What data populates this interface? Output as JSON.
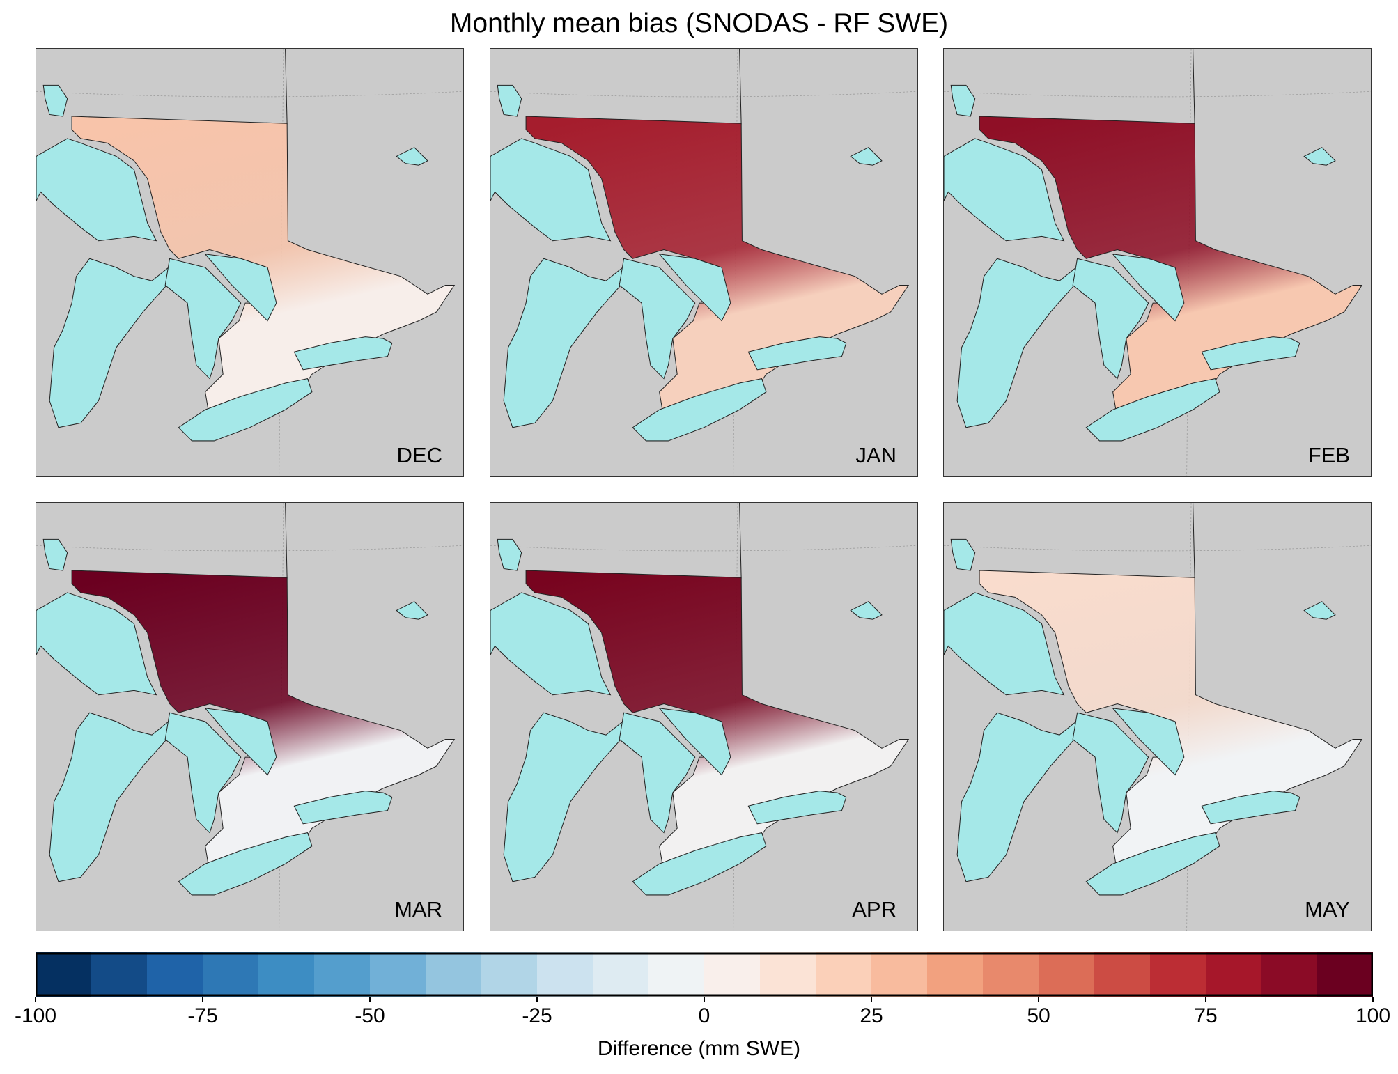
{
  "chart_data": {
    "type": "heatmap",
    "title": "Monthly mean bias (SNODAS - RF SWE)",
    "description_units": "mm SWE",
    "panels": [
      {
        "label": "DEC",
        "north_bias": 25,
        "south_bias": 3,
        "color_north": "#f8c4aa",
        "color_south": "#f7eeea"
      },
      {
        "label": "JAN",
        "north_bias": 80,
        "south_bias": 15,
        "color_north": "#a51d2d",
        "color_south": "#f6d0bd"
      },
      {
        "label": "FEB",
        "north_bias": 85,
        "south_bias": 20,
        "color_north": "#8f0f26",
        "color_south": "#f7c8b0"
      },
      {
        "label": "MAR",
        "north_bias": 100,
        "south_bias": 5,
        "color_north": "#6b0020",
        "color_south": "#f1f2f4"
      },
      {
        "label": "APR",
        "north_bias": 95,
        "south_bias": 3,
        "color_north": "#78041f",
        "color_south": "#f2f1f1"
      },
      {
        "label": "MAY",
        "north_bias": 15,
        "south_bias": 1,
        "color_north": "#f9dccd",
        "color_south": "#f1f3f5"
      }
    ],
    "colorbar": {
      "label": "Difference (mm SWE)",
      "range": [
        -100,
        100
      ],
      "ticks": [
        "-100",
        "-75",
        "-50",
        "-25",
        "0",
        "25",
        "50",
        "75",
        "100"
      ],
      "tick_values": [
        -100,
        -75,
        -50,
        -25,
        0,
        25,
        50,
        75,
        100
      ],
      "colors": [
        "#053061",
        "#134b87",
        "#1f63a8",
        "#2e78b5",
        "#3d8dc3",
        "#549ecd",
        "#71b0d7",
        "#94c5df",
        "#b1d5e7",
        "#cce2ef",
        "#deebf2",
        "#eff3f5",
        "#f9efeb",
        "#fbe3d6",
        "#fbd0b9",
        "#f8bb9e",
        "#f2a17f",
        "#e8896c",
        "#dc6d57",
        "#cc4c44",
        "#bc2d34",
        "#a6172a",
        "#8b0b26",
        "#6b0020"
      ]
    },
    "water_color": "#a5e8e8",
    "background_color": "#cbcbcb"
  }
}
